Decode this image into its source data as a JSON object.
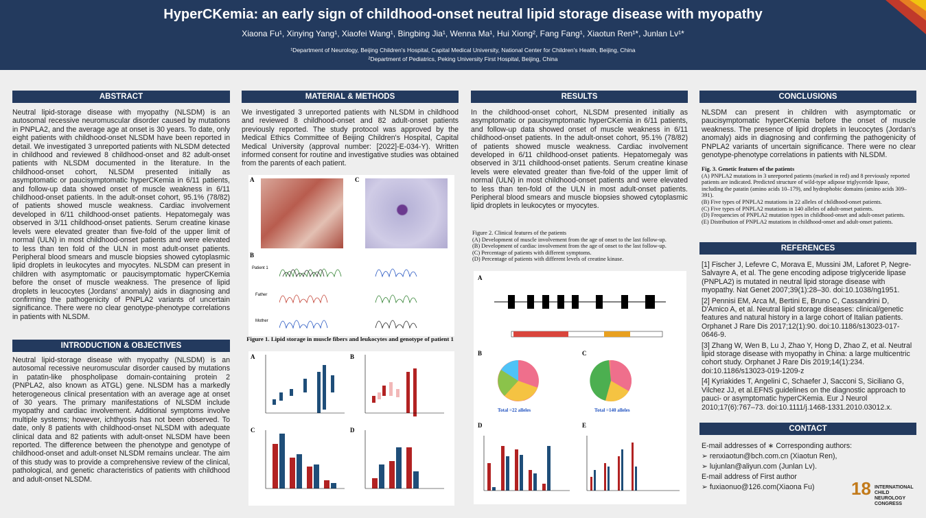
{
  "header": {
    "title": "HyperCKemia: an early sign of childhood-onset neutral lipid storage disease with myopathy",
    "authors": "Xiaona Fu¹, Xinying Yang¹, Xiaofei Wang¹, Bingbing Jia¹, Wenna Ma¹, Hui Xiong², Fang Fang¹, Xiaotun Ren¹*, Junlan Lv¹*",
    "affiliations": [
      "¹Department of Neurology, Beijing Children's Hospital, Capital Medical University, National Center for Children's Health, Beijing, China",
      "²Department of Pediatrics, Peking University First Hospital, Beijing, China"
    ]
  },
  "abstract": {
    "heading": "ABSTRACT",
    "text": "Neutral lipid-storage disease with myopathy (NLSDM) is an autosomal recessive neuromuscular disorder caused by mutations in PNPLA2, and the average age at onset is 30 years. To date, only eight patients with childhood-onset NLSDM have been reported in detail. We investigated 3 unreported patients with NLSDM detected in childhood and reviewed 8 childhood-onset and 82 adult-onset patients with NLSDM documented in the literature. In the childhood-onset cohort, NLSDM presented initially as asymptomatic or paucisymptomatic hyperCKemia in 6/11 patients, and follow-up data showed onset of muscle weakness in 6/11 childhood-onset patients. In the adult-onset cohort, 95.1% (78/82) of patients showed muscle weakness. Cardiac involvement developed in 6/11 childhood-onset patients. Hepatomegaly was observed in 3/11 childhood-onset patients. Serum creatine kinase levels were elevated greater than five-fold of the upper limit of normal (ULN) in most childhood-onset patients and were elevated to less than ten fold of the ULN in most adult-onset patients. Peripheral blood smears and muscle biopsies showed cytoplasmic lipid droplets in leukocytes and myocytes. NLSDM can present in children with asymptomatic or paucisymptomatic hyperCKemia before the onset of muscle weakness. The presence of lipid droplets in leucocytes (Jordans' anomaly) aids in diagnosing and confirming the pathogenicity of PNPLA2 variants of uncertain significance. There were no clear genotype-phenotype correlations in patients with NLSDM."
  },
  "introduction": {
    "heading": "INTRODUCTION & OBJECTIVES",
    "text": "Neutral lipid-storage disease with myopathy (NLSDM) is an autosomal recessive neuromuscular disorder caused by mutations in patatin-like phospholipase domain-containing protein 2 (PNPLA2, also known as ATGL) gene. NLSDM has a markedly heterogeneous clinical presentation with an average age at onset of 30 years. The primary manifestations of NLSDM include myopathy and cardiac involvement. Additional symptoms involve multiple systems; however, ichthyosis has not been observed. To date, only 8 patients with childhood-onset NLSDM with adequate clinical data and 82 patients with adult-onset NLSDM have been reported. The difference between the phenotype and genotype of childhood-onset and adult-onset NLSDM remains unclear. The aim of this study was to provide a comprehensive review of the clinical, pathological, and genetic characteristics of patients with childhood and adult-onset NLSDM."
  },
  "methods": {
    "heading": "MATERIAL & METHODS",
    "text": "We investigated 3 unreported patients with NLSDM in childhood and reviewed 8 childhood-onset and 82 adult-onset patients previously reported. The study protocol was approved by the Medical Ethics Committee of Beijing Children's Hospital, Capital Medical University (approval number: [2022]-E-034-Y). Written informed consent for routine and investigative studies was obtained from the parents of each patient.",
    "panels": [
      "A",
      "C",
      "B"
    ],
    "rows": [
      "Patient 1",
      "Father",
      "Mother"
    ],
    "caption": "Figure 1. Lipid storage in muscle fibers and leukocytes and genotype of patient 1",
    "chart_panels": [
      "A",
      "B",
      "C",
      "D"
    ]
  },
  "results": {
    "heading": "RESULTS",
    "text": "In the childhood-onset cohort, NLSDM presented initially as asymptomatic or paucisymptomatic hyperCKemia in 6/11 patients, and follow-up data showed onset of muscle weakness in 6/11 childhood-onset patients. In the adult-onset cohort, 95.1% (78/82) of patients showed muscle weakness. Cardiac involvement developed in 6/11 childhood-onset patients. Hepatomegaly was observed in 3/11 childhood-onset patients. Serum creatine kinase levels were elevated greater than five-fold of the upper limit of normal (ULN) in most childhood-onset patients and were elevated to less than ten-fold of the ULN in most adult-onset patients. Peripheral blood smears and muscle biopsies showed cytoplasmic lipid droplets in leukocytes or myocytes.",
    "caption": [
      "Figure 2. Clinical features of the patients",
      "(A) Development of muscle involvement from the age of onset to the last follow-up.",
      "(B) Development of cardiac involvement from the age of onset to the last follow-up.",
      "(C) Percentage of patients with different symptoms.",
      "(D) Percentage of patients with different levels of creatine kinase."
    ],
    "panels": [
      "A",
      "B",
      "C",
      "D",
      "E"
    ],
    "totals": [
      "Total =22 alleles",
      "Total =140 alleles"
    ]
  },
  "conclusions": {
    "heading": "CONCLUSIONS",
    "text": "NLSDM can present in children with asymptomatic or paucisymptomatic hyperCKemia before the onset of muscle weakness. The presence of lipid droplets in leucocytes (Jordan's anomaly) aids in diagnosing and confirming the pathogenicity of PNPLA2 variants of uncertain significance. There were no clear genotype-phenotype correlations in patients with NLSDM.",
    "caption": [
      "Fig. 3. Genetic features of the patients",
      "(A) PNPLA2 mutations in 3 unreported patients (marked in red) and 8 previously reported patients are indicated. Predicted structure of wild-type adipose triglyceride lipase,",
      "including the patatin (amino acids 10–179), and hydrophobic domains (amino acids 309–391).",
      "(B) Five types of PNPLA2 mutations in 22 alleles of childhood-onset patients.",
      "(C) Five types of PNPLA2 mutations in 140 alleles of adult-onset patients.",
      "(D) Frequencies of PNPLA2 mutation types in childhood-onset and adult-onset patients.",
      "(E) Distribution of PNPLA2 mutations in childhood-onset and adult-onset patients."
    ]
  },
  "references": {
    "heading": "REFERENCES",
    "items": [
      "[1] Fischer J, Lefevre C, Morava E, Mussini JM, Laforet P, Negre-Salvayre A, et al. The gene encoding adipose triglyceride lipase (PNPLA2) is mutated in neutral lipid storage disease with myopathy. Nat Genet 2007;39(1):28–30. doi:10.1038/ng1951.",
      "[2] Pennisi EM, Arca M, Bertini E, Bruno C, Cassandrini D, D'Amico A, et al. Neutral lipid storage diseases: clinical/genetic features and natural history in a large cohort of Italian patients. Orphanet J Rare Dis 2017;12(1):90. doi:10.1186/s13023-017-0646-9.",
      "[3] Zhang W, Wen B, Lu J, Zhao Y, Hong D, Zhao Z, et al. Neutral lipid storage disease with myopathy in China: a large multicentric cohort study. Orphanet J Rare Dis 2019;14(1):234. doi:10.1186/s13023-019-1209-z",
      "[4] Kyriakides T, Angelini C, Schaefer J, Sacconi S, Siciliano G, Vilchez JJ, et al.EFNS guidelines on the diagnostic approach to pauci- or asymptomatic hyperCKemia. Eur J Neurol 2010;17(6):767–73. doi:10.1111/j.1468-1331.2010.03012.x."
    ]
  },
  "contact": {
    "heading": "CONTACT",
    "lines": [
      "E-mail addresses of ∗ Corresponding authors:",
      "➢  renxiaotun@bch.com.cn (Xiaotun Ren),",
      "➢  lujunlan@aliyun.com (Junlan Lv).",
      "E-mail address of First author",
      "➢  fuxiaonuo@126.com(Xiaona Fu)"
    ]
  },
  "logo": {
    "number": "18",
    "text": "INTERNATIONAL CHILD NEUROLOGY CONGRESS"
  }
}
